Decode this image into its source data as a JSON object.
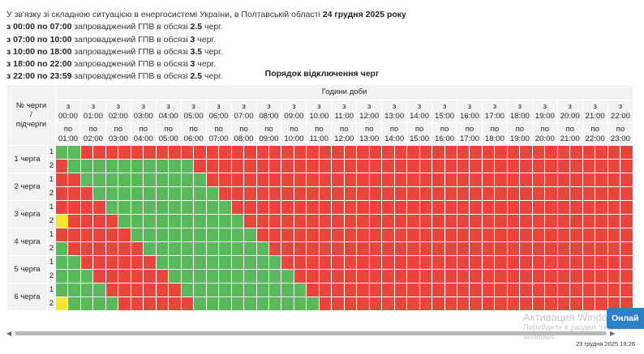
{
  "intro": {
    "lead_text": "У зв'язку зі складною ситуацією в енергосистемі України, в Полтавській області ",
    "lead_date": "24 грудня 2025 року",
    "lines": [
      {
        "time": "з 00:00 по 07:00",
        "text": " запроваджений ГПВ в обсязі ",
        "amount": "2.5",
        "unit": " черг."
      },
      {
        "time": "з 07:00 по 10:00",
        "text": " запроваджений ГПВ в обсязі ",
        "amount": "3",
        "unit": " черг."
      },
      {
        "time": "з 10:00 по 18:00",
        "text": " запроваджений ГПВ в обсязі ",
        "amount": "3.5",
        "unit": " черг."
      },
      {
        "time": "з 18:00 по 22:00",
        "text": " запроваджений ГПВ в обсязі ",
        "amount": "3",
        "unit": " черг."
      },
      {
        "time": "з 22:00 по 23:59",
        "text": " запроваджений ГПВ в обсязі ",
        "amount": "2.5",
        "unit": " черг."
      }
    ]
  },
  "schedule": {
    "caption": "Порядок відключення черг",
    "corner_line1": "№ черги",
    "corner_line2": "/",
    "corner_line3": "підчерги",
    "hours_header": "Години доби",
    "from_word": "з",
    "to_word": "по",
    "hours_from": [
      "00:00",
      "01:00",
      "02:00",
      "03:00",
      "04:00",
      "05:00",
      "06:00",
      "07:00",
      "08:00",
      "09:00",
      "10:00",
      "11:00",
      "12:00",
      "13:00",
      "14:00",
      "15:00",
      "16:00",
      "17:00",
      "18:00",
      "19:00",
      "20:00",
      "21:00",
      "22:00"
    ],
    "hours_to": [
      "01:00",
      "02:00",
      "03:00",
      "04:00",
      "05:00",
      "06:00",
      "07:00",
      "08:00",
      "09:00",
      "10:00",
      "11:00",
      "12:00",
      "13:00",
      "14:00",
      "15:00",
      "16:00",
      "17:00",
      "18:00",
      "19:00",
      "20:00",
      "21:00",
      "22:00",
      "23:00"
    ],
    "legend_colors": {
      "on": "#5cb85c",
      "off": "#e8453c",
      "maybe": "#f7e52a"
    },
    "queues": [
      {
        "label": "1 черга",
        "subqueues": [
          {
            "label": "1",
            "states": [
              "on",
              "on",
              "off",
              "off",
              "off",
              "off",
              "off",
              "off",
              "off",
              "off",
              "off",
              "off",
              "off",
              "off",
              "off",
              "off",
              "off",
              "off",
              "off",
              "off",
              "off",
              "off",
              "off",
              "off",
              "off",
              "off",
              "off",
              "off",
              "off",
              "off",
              "off",
              "off",
              "off",
              "off",
              "off",
              "off",
              "off",
              "off",
              "off",
              "off",
              "off",
              "off",
              "off",
              "off",
              "off",
              "off"
            ]
          },
          {
            "label": "2",
            "states": [
              "off",
              "on",
              "on",
              "on",
              "on",
              "on",
              "on",
              "on",
              "on",
              "on",
              "on",
              "off",
              "off",
              "off",
              "off",
              "off",
              "off",
              "off",
              "off",
              "off",
              "off",
              "off",
              "off",
              "off",
              "off",
              "off",
              "off",
              "off",
              "off",
              "off",
              "off",
              "off",
              "off",
              "off",
              "off",
              "off",
              "off",
              "off",
              "off",
              "off",
              "off",
              "off",
              "off",
              "off",
              "off",
              "off"
            ]
          }
        ]
      },
      {
        "label": "2 черга",
        "subqueues": [
          {
            "label": "1",
            "states": [
              "off",
              "off",
              "on",
              "on",
              "on",
              "on",
              "on",
              "on",
              "on",
              "on",
              "on",
              "on",
              "off",
              "off",
              "off",
              "off",
              "off",
              "off",
              "off",
              "off",
              "off",
              "off",
              "off",
              "off",
              "off",
              "off",
              "off",
              "off",
              "off",
              "off",
              "off",
              "off",
              "off",
              "off",
              "off",
              "off",
              "off",
              "off",
              "off",
              "off",
              "off",
              "off",
              "off",
              "off",
              "off",
              "off"
            ]
          },
          {
            "label": "2",
            "states": [
              "off",
              "off",
              "off",
              "on",
              "on",
              "on",
              "on",
              "on",
              "on",
              "on",
              "on",
              "on",
              "on",
              "off",
              "off",
              "off",
              "off",
              "off",
              "off",
              "off",
              "off",
              "off",
              "off",
              "off",
              "off",
              "off",
              "off",
              "off",
              "off",
              "off",
              "off",
              "off",
              "off",
              "off",
              "off",
              "off",
              "off",
              "off",
              "off",
              "off",
              "off",
              "off",
              "off",
              "off",
              "off",
              "off"
            ]
          }
        ]
      },
      {
        "label": "3 черга",
        "subqueues": [
          {
            "label": "1",
            "states": [
              "off",
              "off",
              "off",
              "off",
              "on",
              "on",
              "on",
              "on",
              "on",
              "on",
              "on",
              "on",
              "on",
              "on",
              "off",
              "off",
              "off",
              "off",
              "off",
              "off",
              "off",
              "off",
              "off",
              "off",
              "off",
              "off",
              "off",
              "off",
              "off",
              "off",
              "off",
              "off",
              "off",
              "off",
              "off",
              "off",
              "off",
              "off",
              "off",
              "off",
              "off",
              "off",
              "off",
              "off",
              "off",
              "off"
            ]
          },
          {
            "label": "2",
            "states": [
              "may",
              "off",
              "off",
              "off",
              "off",
              "on",
              "on",
              "on",
              "on",
              "on",
              "on",
              "on",
              "on",
              "on",
              "on",
              "off",
              "off",
              "off",
              "off",
              "off",
              "off",
              "off",
              "off",
              "off",
              "off",
              "off",
              "off",
              "off",
              "off",
              "off",
              "off",
              "off",
              "off",
              "off",
              "off",
              "off",
              "off",
              "off",
              "off",
              "off",
              "off",
              "off",
              "off",
              "off",
              "off",
              "off"
            ]
          }
        ]
      },
      {
        "label": "4 черга",
        "subqueues": [
          {
            "label": "1",
            "states": [
              "off",
              "off",
              "off",
              "off",
              "off",
              "off",
              "on",
              "on",
              "on",
              "on",
              "on",
              "on",
              "on",
              "on",
              "on",
              "on",
              "off",
              "off",
              "off",
              "off",
              "off",
              "off",
              "off",
              "off",
              "off",
              "off",
              "off",
              "off",
              "off",
              "off",
              "off",
              "off",
              "off",
              "off",
              "off",
              "off",
              "off",
              "off",
              "off",
              "off",
              "off",
              "off",
              "off",
              "off",
              "off",
              "off"
            ]
          },
          {
            "label": "2",
            "states": [
              "on",
              "off",
              "off",
              "off",
              "off",
              "off",
              "off",
              "on",
              "on",
              "on",
              "on",
              "on",
              "on",
              "on",
              "on",
              "on",
              "on",
              "off",
              "off",
              "off",
              "off",
              "off",
              "off",
              "off",
              "off",
              "off",
              "off",
              "off",
              "off",
              "off",
              "off",
              "off",
              "off",
              "off",
              "off",
              "off",
              "off",
              "off",
              "off",
              "off",
              "off",
              "off",
              "off",
              "off",
              "off",
              "off"
            ]
          }
        ]
      },
      {
        "label": "5 черга",
        "subqueues": [
          {
            "label": "1",
            "states": [
              "on",
              "on",
              "off",
              "off",
              "off",
              "off",
              "off",
              "off",
              "on",
              "on",
              "on",
              "on",
              "on",
              "on",
              "on",
              "on",
              "on",
              "on",
              "off",
              "off",
              "off",
              "off",
              "off",
              "off",
              "off",
              "off",
              "off",
              "off",
              "off",
              "off",
              "off",
              "off",
              "off",
              "off",
              "off",
              "off",
              "off",
              "off",
              "off",
              "off",
              "off",
              "off",
              "off",
              "off",
              "off",
              "off"
            ]
          },
          {
            "label": "2",
            "states": [
              "on",
              "on",
              "on",
              "off",
              "off",
              "off",
              "off",
              "off",
              "off",
              "on",
              "on",
              "on",
              "on",
              "on",
              "on",
              "on",
              "on",
              "on",
              "on",
              "off",
              "off",
              "off",
              "off",
              "off",
              "off",
              "off",
              "off",
              "off",
              "off",
              "off",
              "off",
              "off",
              "off",
              "off",
              "off",
              "off",
              "off",
              "off",
              "off",
              "off",
              "off",
              "off",
              "off",
              "off",
              "off",
              "off"
            ]
          }
        ]
      },
      {
        "label": "6 черга",
        "subqueues": [
          {
            "label": "1",
            "states": [
              "on",
              "on",
              "on",
              "on",
              "off",
              "off",
              "off",
              "off",
              "off",
              "off",
              "on",
              "on",
              "on",
              "on",
              "on",
              "on",
              "on",
              "on",
              "on",
              "on",
              "off",
              "off",
              "off",
              "off",
              "off",
              "off",
              "off",
              "off",
              "off",
              "off",
              "off",
              "off",
              "off",
              "off",
              "off",
              "off",
              "off",
              "off",
              "off",
              "off",
              "off",
              "off",
              "off",
              "off",
              "off",
              "off"
            ]
          },
          {
            "label": "2",
            "states": [
              "may",
              "on",
              "on",
              "on",
              "on",
              "off",
              "off",
              "off",
              "off",
              "off",
              "off",
              "on",
              "on",
              "on",
              "on",
              "on",
              "on",
              "on",
              "on",
              "on",
              "on",
              "off",
              "off",
              "off",
              "off",
              "off",
              "off",
              "off",
              "off",
              "off",
              "off",
              "off",
              "off",
              "off",
              "off",
              "off",
              "off",
              "off",
              "off",
              "off",
              "off",
              "off",
              "off",
              "off",
              "off",
              "off"
            ]
          }
        ]
      }
    ]
  },
  "online_button": "Онлай",
  "watermark": {
    "title": "Активация Windows",
    "line1": "Перейдите в раздел \"Настройки\"",
    "line2": "Windows."
  },
  "datetime": "23 грудня 2025 19:26"
}
